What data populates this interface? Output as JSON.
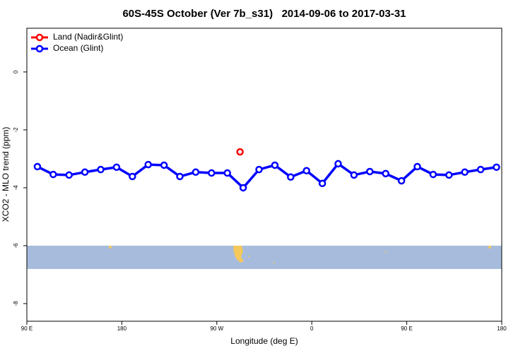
{
  "chart_data": {
    "type": "line",
    "title": "60S-45S October (Ver 7b_s31)   2014-09-06 to 2017-03-31",
    "x_label": "Longitude (deg E)",
    "y_label": "XCO2 - MLO trend (ppm)",
    "xlim": [
      90,
      540
    ],
    "ylim": [
      -8.61,
      1.51
    ],
    "xticks": [
      {
        "value": 90,
        "label": "90 E"
      },
      180,
      {
        "value": 270,
        "label": "90 W"
      },
      {
        "value": 360,
        "label": "0"
      },
      {
        "value": 450,
        "label": "90 E"
      },
      {
        "value": 540,
        "label": "180"
      }
    ],
    "yticks": [
      -8,
      -6,
      -4,
      -2,
      0
    ],
    "legend": "top-left",
    "series": [
      {
        "name": "Land (Nadir&Glint)",
        "color": "#ff0000",
        "x": [
          292
        ],
        "values": [
          -2.76
        ]
      },
      {
        "name": "Ocean (Glint)",
        "color": "#0000ff",
        "x": [
          100,
          115,
          130,
          145,
          160,
          175,
          190,
          205,
          220,
          235,
          250,
          265,
          280,
          295,
          310,
          325,
          340,
          355,
          370,
          385,
          400,
          415,
          430,
          445,
          460,
          475,
          490,
          505,
          520,
          535
        ],
        "values": [
          -3.27,
          -3.54,
          -3.56,
          -3.46,
          -3.37,
          -3.29,
          -3.61,
          -3.2,
          -3.22,
          -3.61,
          -3.46,
          -3.49,
          -3.49,
          -4.0,
          -3.37,
          -3.22,
          -3.63,
          -3.41,
          -3.85,
          -3.17,
          -3.56,
          -3.44,
          -3.51,
          -3.76,
          -3.27,
          -3.54,
          -3.56,
          -3.46,
          -3.37,
          -3.29
        ]
      }
    ]
  }
}
